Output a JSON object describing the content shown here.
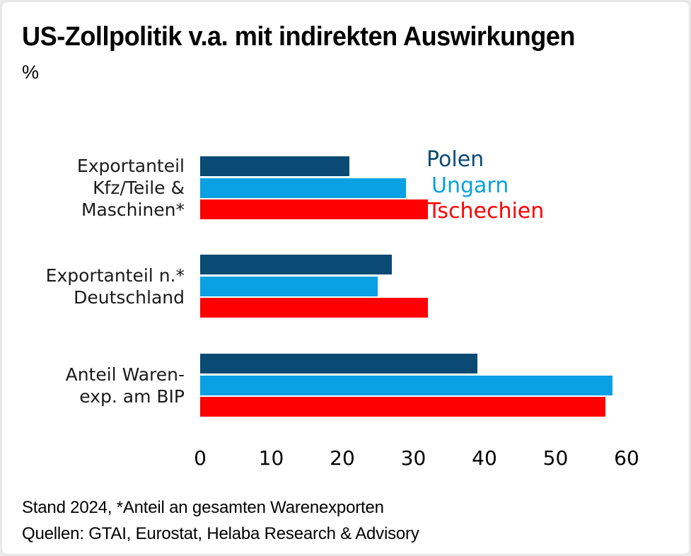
{
  "card": {
    "title": "US-Zollpolitik v.a. mit indirekten Auswirkungen",
    "unit_label": "%"
  },
  "chart_data": {
    "type": "bar",
    "orientation": "horizontal",
    "title": "US-Zollpolitik v.a. mit indirekten Auswirkungen",
    "ylabel_unit": "%",
    "categories": [
      "Exportanteil Kfz/Teile & Maschinen*",
      "Exportanteil n.* Deutschland",
      "Anteil Waren-exp. am BIP"
    ],
    "category_lines": [
      [
        "Exportanteil",
        "Kfz/Teile &",
        "Maschinen*"
      ],
      [
        "Exportanteil n.*",
        "Deutschland"
      ],
      [
        "Anteil Waren-",
        "exp. am BIP"
      ]
    ],
    "series": [
      {
        "name": "Polen",
        "color": "#0a4a73",
        "values": [
          21,
          27,
          39
        ]
      },
      {
        "name": "Ungarn",
        "color": "#09a0e4",
        "values": [
          29,
          25,
          58
        ]
      },
      {
        "name": "Tschechien",
        "color": "#fe0000",
        "values": [
          32,
          32,
          57
        ]
      }
    ],
    "xlim": [
      0,
      60
    ],
    "xticks": [
      0,
      10,
      20,
      30,
      40,
      50,
      60
    ],
    "grid": false,
    "legend_position": "right-of-first-group"
  },
  "footer": {
    "line1": "Stand 2024, *Anteil an gesamten Warenexporten",
    "line2": "Quellen: GTAI, Eurostat, Helaba Research & Advisory"
  }
}
